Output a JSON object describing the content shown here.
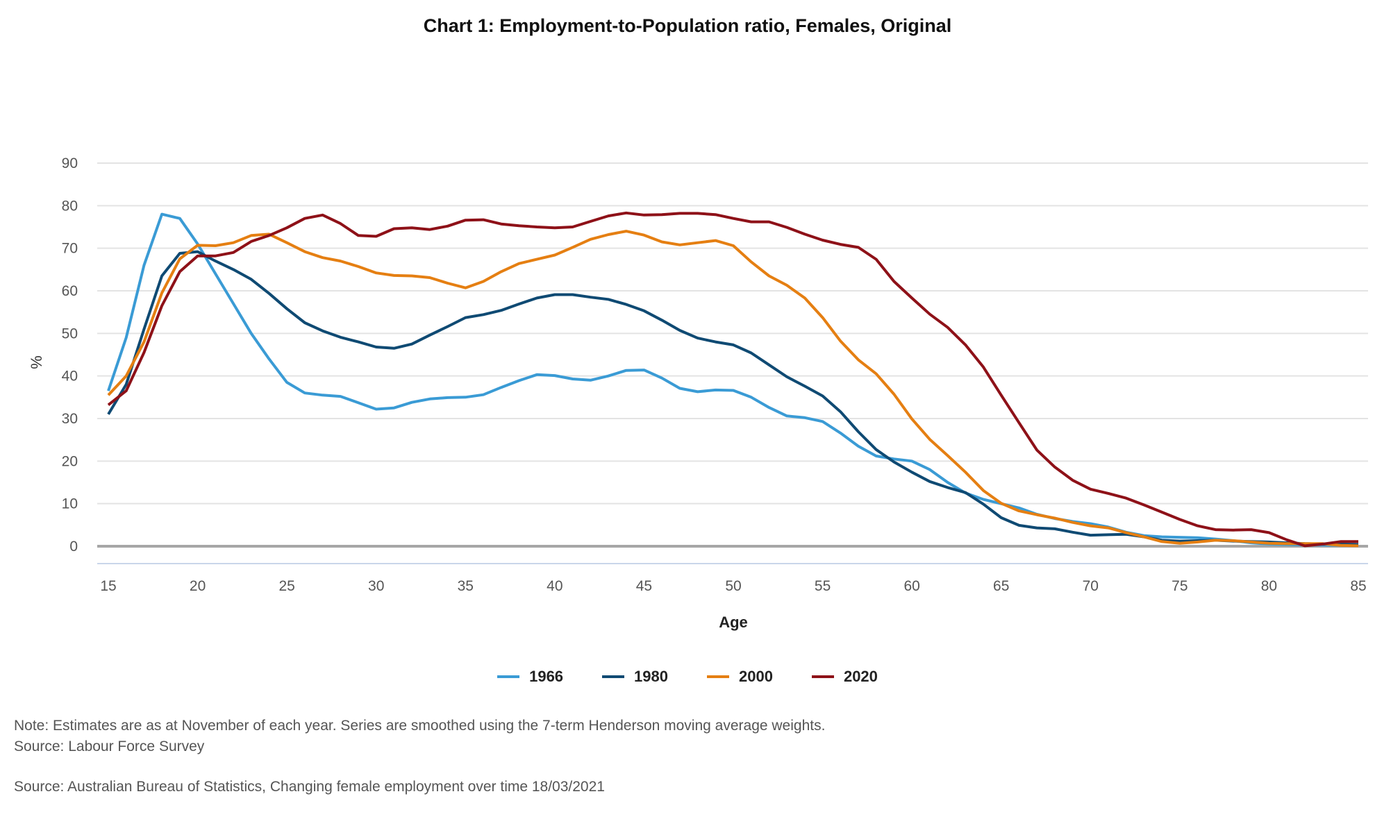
{
  "chart_data": {
    "type": "line",
    "title": "Chart 1: Employment-to-Population ratio, Females, Original",
    "xlabel": "Age",
    "ylabel": "%",
    "xlim": [
      15,
      85
    ],
    "ylim": [
      0,
      90
    ],
    "xticks": [
      15,
      20,
      25,
      30,
      35,
      40,
      45,
      50,
      55,
      60,
      65,
      70,
      75,
      80,
      85
    ],
    "yticks": [
      0,
      10,
      20,
      30,
      40,
      50,
      60,
      70,
      80,
      90
    ],
    "grid": true,
    "legend_position": "bottom",
    "x_start": 15,
    "series": [
      {
        "name": "1966",
        "color": "#3a9bd5",
        "values": [
          36.5,
          49,
          66,
          78,
          77,
          71,
          64,
          57,
          50,
          44,
          38.5,
          36,
          35.5,
          35.2,
          33.7,
          32.2,
          32.5,
          33.8,
          34.6,
          34.9,
          35,
          35.6,
          37.3,
          38.9,
          40.3,
          40.1,
          39.3,
          39,
          40,
          41.3,
          41.4,
          39.5,
          37.1,
          36.3,
          36.7,
          36.6,
          35,
          32.6,
          30.6,
          30.2,
          29.3,
          26.6,
          23.5,
          21.2,
          20.5,
          20,
          18,
          15,
          12.5,
          11,
          10,
          9,
          7.5,
          6.5,
          5.8,
          5.3,
          4.5,
          3.3,
          2.5,
          2.2,
          2.1,
          2,
          1.7,
          1.3,
          0.8,
          0.5,
          0.4,
          0.3,
          0.3,
          0.2,
          0.2
        ]
      },
      {
        "name": "1980",
        "color": "#0f4a73",
        "values": [
          31,
          38,
          51,
          63.5,
          68.8,
          69.2,
          67,
          65,
          62.7,
          59.4,
          55.8,
          52.5,
          50.6,
          49.1,
          48,
          46.8,
          46.5,
          47.5,
          49.6,
          51.6,
          53.7,
          54.4,
          55.4,
          56.9,
          58.3,
          59.1,
          59.1,
          58.5,
          58,
          56.8,
          55.3,
          53.1,
          50.7,
          48.9,
          48,
          47.3,
          45.4,
          42.6,
          39.8,
          37.6,
          35.3,
          31.6,
          26.9,
          22.7,
          19.8,
          17.4,
          15.2,
          13.8,
          12.6,
          9.9,
          6.7,
          4.9,
          4.3,
          4.1,
          3.3,
          2.6,
          2.7,
          2.8,
          2.2,
          1.4,
          1.2,
          1.3,
          1.4,
          1.2,
          1.1,
          1,
          0.8,
          0.6,
          0.5,
          0.5,
          0.4
        ]
      },
      {
        "name": "2000",
        "color": "#e57f12",
        "values": [
          35.5,
          40,
          48,
          59.5,
          67.5,
          70.7,
          70.6,
          71.3,
          73,
          73.3,
          71.3,
          69.2,
          67.8,
          67,
          65.7,
          64.2,
          63.6,
          63.5,
          63.1,
          61.8,
          60.7,
          62.2,
          64.5,
          66.4,
          67.4,
          68.4,
          70.2,
          72.1,
          73.2,
          74,
          73.1,
          71.5,
          70.8,
          71.3,
          71.8,
          70.6,
          66.8,
          63.5,
          61.3,
          58.3,
          53.7,
          48.2,
          43.8,
          40.5,
          35.7,
          29.9,
          25.1,
          21.3,
          17.4,
          13.1,
          10.1,
          8.3,
          7.4,
          6.6,
          5.6,
          4.8,
          4.3,
          3.2,
          2.2,
          1.1,
          0.7,
          1,
          1.4,
          1.3,
          1,
          0.7,
          0.6,
          0.6,
          0.6,
          0.2,
          0.1
        ]
      },
      {
        "name": "2020",
        "color": "#8e1118",
        "values": [
          33.2,
          36.5,
          45.5,
          56.5,
          64.5,
          68.2,
          68.2,
          69,
          71.6,
          73,
          74.8,
          77,
          77.8,
          75.8,
          73,
          72.8,
          74.6,
          74.8,
          74.4,
          75.2,
          76.6,
          76.7,
          75.7,
          75.3,
          75,
          74.8,
          75,
          76.3,
          77.6,
          78.3,
          77.8,
          77.9,
          78.2,
          78.2,
          77.9,
          77,
          76.2,
          76.2,
          74.9,
          73.3,
          71.9,
          70.9,
          70.2,
          67.4,
          62.2,
          58.3,
          54.5,
          51.4,
          47.3,
          42.1,
          35.5,
          29,
          22.6,
          18.6,
          15.5,
          13.4,
          12.4,
          11.3,
          9.7,
          8,
          6.3,
          4.8,
          3.9,
          3.8,
          3.9,
          3.2,
          1.5,
          0.1,
          0.5,
          1.1,
          1.1
        ]
      }
    ]
  },
  "notes": {
    "note": "Note: Estimates are as at November of each year. Series are smoothed using the 7-term Henderson moving average weights.",
    "source1": "Source: Labour Force Survey",
    "source2": "Source: Australian Bureau of Statistics, Changing female employment over time 18/03/2021"
  }
}
